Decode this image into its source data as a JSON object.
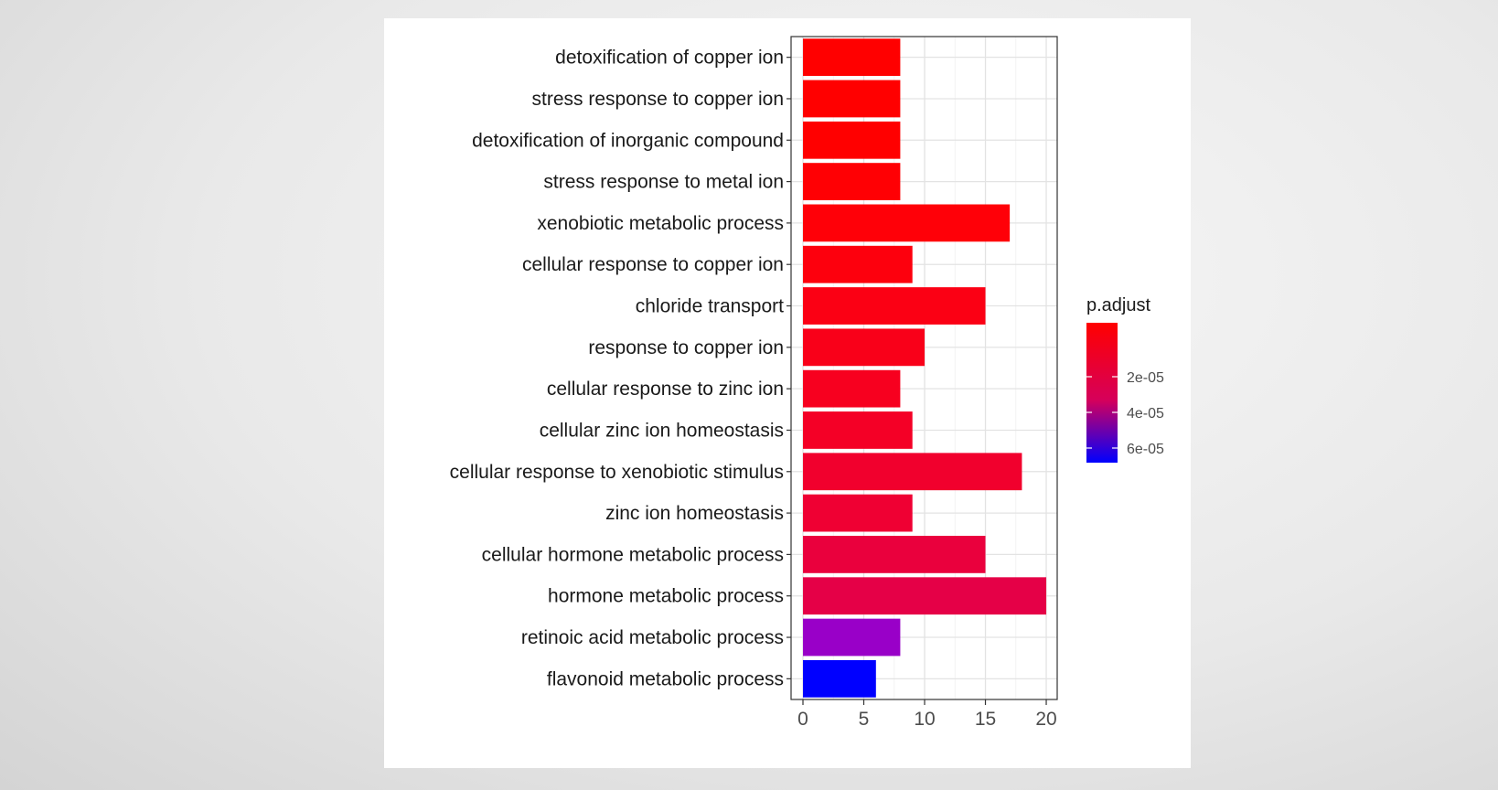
{
  "chart_data": {
    "type": "bar",
    "orientation": "horizontal",
    "categories": [
      "detoxification of copper ion",
      "stress response to copper ion",
      "detoxification of inorganic compound",
      "stress response to metal ion",
      "xenobiotic metabolic process",
      "cellular response to copper ion",
      "chloride transport",
      "response to copper ion",
      "cellular response to zinc ion",
      "cellular zinc ion homeostasis",
      "cellular response to xenobiotic stimulus",
      "zinc ion homeostasis",
      "cellular hormone metabolic process",
      "hormone metabolic process",
      "retinoic acid metabolic process",
      "flavonoid metabolic process"
    ],
    "values": [
      8,
      8,
      8,
      8,
      17,
      9,
      15,
      10,
      8,
      9,
      18,
      9,
      15,
      20,
      8,
      6
    ],
    "bar_colors": [
      "#ff0000",
      "#ff0000",
      "#ff0000",
      "#ff0004",
      "#ff0008",
      "#fd000d",
      "#fb0014",
      "#f90019",
      "#f7001f",
      "#f40026",
      "#f1002d",
      "#ef0033",
      "#ea003d",
      "#e50047",
      "#9900c8",
      "#0000ff"
    ],
    "xlim": [
      0,
      20.9
    ],
    "xticks": [
      "0",
      "5",
      "10",
      "15",
      "20"
    ],
    "grid": true,
    "legend": {
      "title": "p.adjust",
      "position": "right",
      "labels": [
        "2e-05",
        "4e-05",
        "6e-05"
      ],
      "color_low": "#ff0000",
      "color_high": "#0000ff"
    }
  }
}
